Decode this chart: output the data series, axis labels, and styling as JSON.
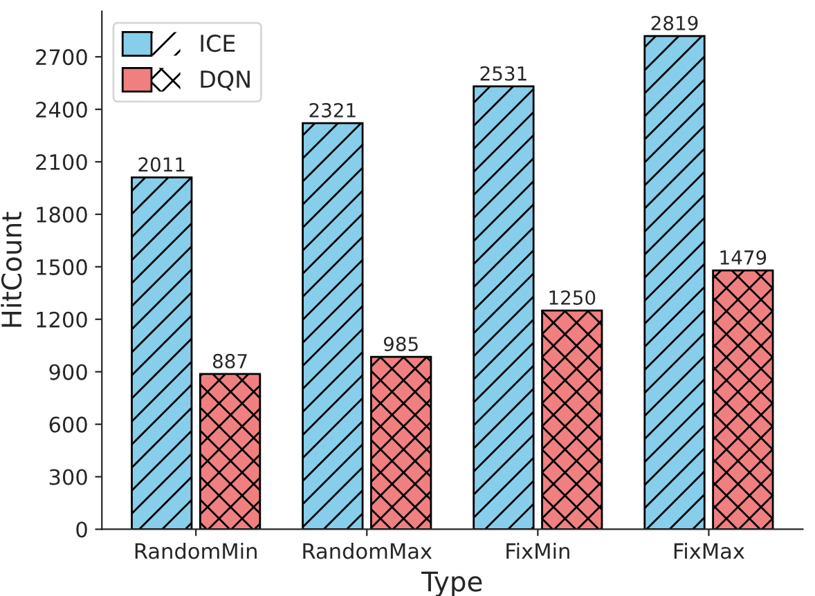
{
  "chart_data": {
    "type": "bar",
    "xlabel": "Type",
    "ylabel": "HitCount",
    "categories": [
      "RandomMin",
      "RandomMax",
      "FixMin",
      "FixMax"
    ],
    "series": [
      {
        "name": "ICE",
        "color": "#87ceeb",
        "values": [
          2011,
          2321,
          2531,
          2819
        ]
      },
      {
        "name": "DQN",
        "color": "#f08080",
        "values": [
          887,
          985,
          1250,
          1479
        ]
      }
    ],
    "ylim": [
      0,
      2960
    ],
    "yticks": [
      0,
      300,
      600,
      900,
      1200,
      1500,
      1800,
      2100,
      2400,
      2700
    ],
    "data_labels": true,
    "legend": "top left",
    "grid": false
  }
}
